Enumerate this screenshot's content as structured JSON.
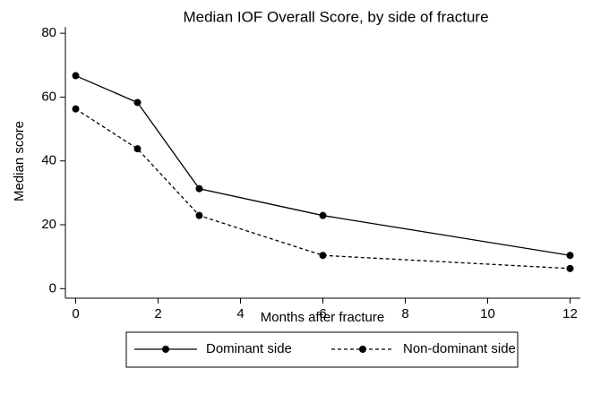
{
  "chart_data": {
    "type": "line",
    "title": "Median IOF Overall Score, by side of fracture",
    "x_label": "Months after fracture",
    "y_label": "Median score",
    "x": [
      0,
      1.5,
      3,
      6,
      12
    ],
    "series": [
      {
        "name": "Dominant side",
        "color": "#000000",
        "dash": "solid",
        "values": [
          66.7,
          58.3,
          31.3,
          22.9,
          10.4
        ]
      },
      {
        "name": "Non-dominant side",
        "color": "#000000",
        "dash": "dashed",
        "values": [
          56.3,
          43.8,
          22.9,
          10.4,
          6.3
        ]
      }
    ],
    "xlim": [
      -0.25,
      12.25
    ],
    "xticks": [
      0,
      2,
      4,
      6,
      8,
      10,
      12
    ],
    "ylim": [
      -3,
      82
    ],
    "yticks": [
      0,
      20,
      40,
      60,
      80
    ],
    "grid": false,
    "legend": "bottom"
  }
}
